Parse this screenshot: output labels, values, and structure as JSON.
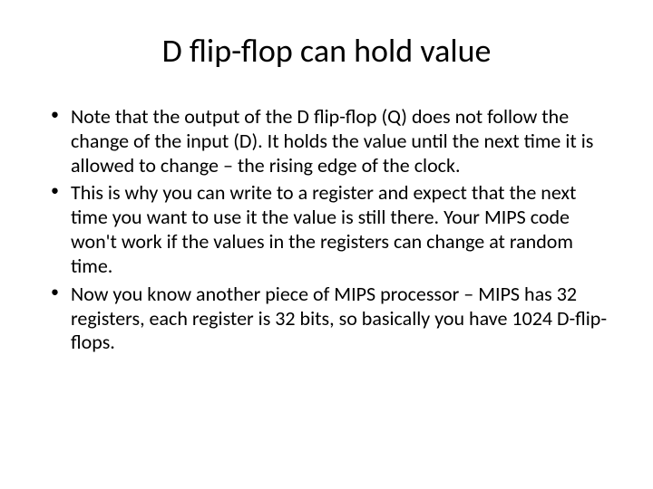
{
  "slide": {
    "title": "D flip-flop can hold value",
    "bullets": [
      "Note that the output of the D flip-flop (Q) does not follow the change of the input (D). It holds the value until the next time it is allowed to change – the rising edge of the clock.",
      "This is why you can write to a register and expect that the next time you want to use it the value is still there. Your MIPS code won't work if the values in the registers can change at random time.",
      "Now you know another piece of MIPS processor – MIPS has 32 registers, each register is 32 bits, so basically you have 1024 D-flip-flops."
    ]
  },
  "styling": {
    "background_color": "#ffffff",
    "text_color": "#000000",
    "title_fontsize": 36,
    "body_fontsize": 22,
    "font_family": "Calibri"
  }
}
